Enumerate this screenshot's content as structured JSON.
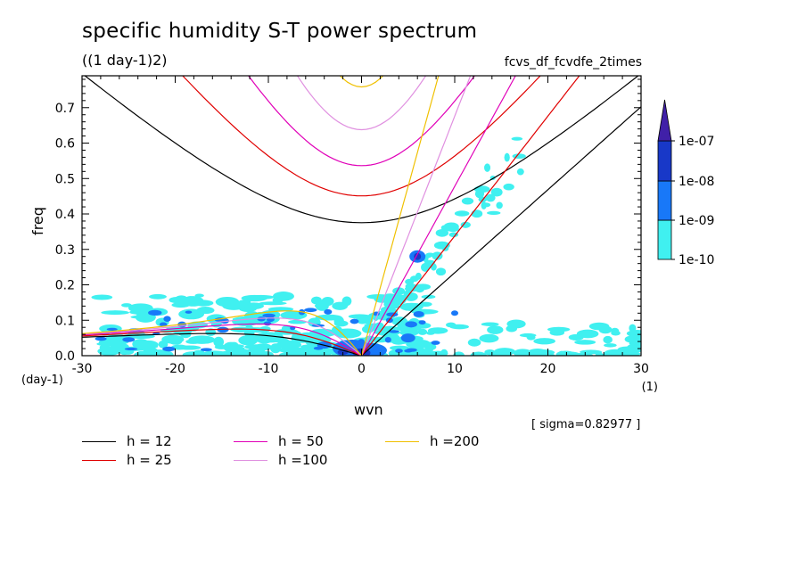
{
  "title": "specific humidity S-T power spectrum",
  "units_label": "((1 day-1)2)",
  "dataset_label": "fcvs_df_fcvdfe_2times",
  "sigma_label": "[ sigma=0.82977 ]",
  "colors": {
    "shade_1e-10": "#40f0f0",
    "shade_1e-9": "#1878f8",
    "shade_1e-8": "#1838c8",
    "shade_1e-7": "#4020a8",
    "h12": "#000000",
    "h25": "#e00000",
    "h50": "#e000b8",
    "h100": "#e090e0",
    "h200": "#f0c000"
  },
  "legend": [
    {
      "label": "h = 12",
      "color": "#000000"
    },
    {
      "label": "h = 25",
      "color": "#e00000"
    },
    {
      "label": "h = 50",
      "color": "#e000b8"
    },
    {
      "label": "h =100",
      "color": "#e090e0"
    },
    {
      "label": "h =200",
      "color": "#f0c000"
    }
  ],
  "chart_data": {
    "type": "heatmap",
    "xlabel": "wvn",
    "xunit": "(1)",
    "ylabel": "freq",
    "yunit": "(day-1)",
    "xlim": [
      -30,
      30
    ],
    "ylim": [
      0,
      0.79
    ],
    "xticks": [
      -30,
      -20,
      -10,
      0,
      10,
      20,
      30
    ],
    "xtick_labels": [
      "-30",
      "-20",
      "-10",
      "0",
      "10",
      "20",
      "30"
    ],
    "yticks": [
      0,
      0.1,
      0.2,
      0.3,
      0.4,
      0.5,
      0.6,
      0.7
    ],
    "ytick_labels": [
      "0.0",
      "0.1",
      "0.2",
      "0.3",
      "0.4",
      "0.5",
      "0.6",
      "0.7"
    ],
    "colorbar": {
      "levels": [
        1e-10,
        1e-09,
        1e-08,
        1e-07
      ],
      "tick_labels": [
        "1e-10",
        "1e-09",
        "1e-08",
        "1e-07"
      ],
      "extend": "max"
    },
    "shaded_regions": [
      {
        "level": "1e-10",
        "x": [
          -28,
          7
        ],
        "y": [
          0.0,
          0.17
        ],
        "description": "broad low-frequency band"
      },
      {
        "level": "1e-10",
        "x": [
          0,
          30
        ],
        "y": [
          0.0,
          0.1
        ]
      },
      {
        "level": "1e-9",
        "x": [
          -3,
          4
        ],
        "y": [
          0.0,
          0.04
        ]
      },
      {
        "level": "1e-9",
        "x": [
          5,
          7
        ],
        "y": [
          0.26,
          0.3
        ]
      },
      {
        "level": "1e-8",
        "x": [
          -1,
          2
        ],
        "y": [
          0.0,
          0.01
        ]
      }
    ],
    "curves": [
      {
        "name": "h = 12",
        "h": 12
      },
      {
        "name": "h = 25",
        "h": 25
      },
      {
        "name": "h = 50",
        "h": 50
      },
      {
        "name": "h =100",
        "h": 100
      },
      {
        "name": "h =200",
        "h": 200
      }
    ]
  }
}
